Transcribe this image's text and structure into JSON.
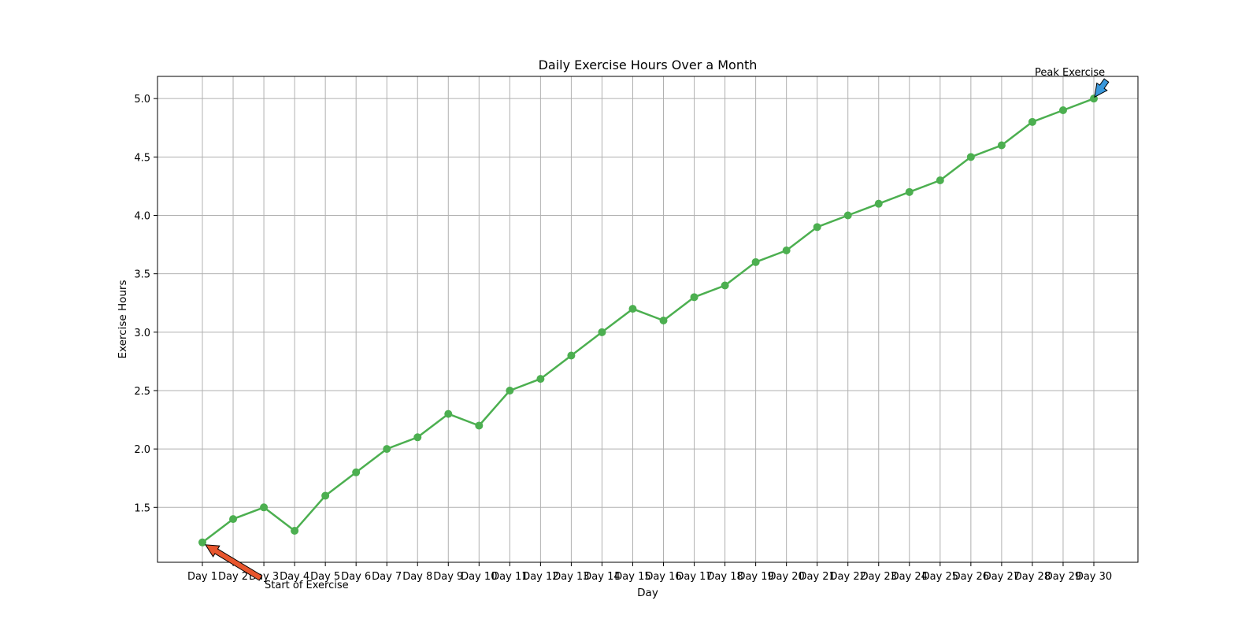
{
  "chart_data": {
    "type": "line",
    "title": "Daily Exercise Hours Over a Month",
    "xlabel": "Day",
    "ylabel": "Exercise Hours",
    "categories": [
      "Day 1",
      "Day 2",
      "Day 3",
      "Day 4",
      "Day 5",
      "Day 6",
      "Day 7",
      "Day 8",
      "Day 9",
      "Day 10",
      "Day 11",
      "Day 12",
      "Day 13",
      "Day 14",
      "Day 15",
      "Day 16",
      "Day 17",
      "Day 18",
      "Day 19",
      "Day 20",
      "Day 21",
      "Day 22",
      "Day 23",
      "Day 24",
      "Day 25",
      "Day 26",
      "Day 27",
      "Day 28",
      "Day 29",
      "Day 30"
    ],
    "values": [
      1.2,
      1.4,
      1.5,
      1.3,
      1.6,
      1.8,
      2.0,
      2.1,
      2.3,
      2.2,
      2.5,
      2.6,
      2.8,
      3.0,
      3.2,
      3.1,
      3.3,
      3.4,
      3.6,
      3.7,
      3.9,
      4.0,
      4.1,
      4.2,
      4.3,
      4.5,
      4.6,
      4.8,
      4.9,
      5.0
    ],
    "ylim": [
      1.03,
      5.19
    ],
    "yticks": [
      1.5,
      2.0,
      2.5,
      3.0,
      3.5,
      4.0,
      4.5,
      5.0
    ],
    "grid": true,
    "line_color": "#4caf50",
    "annotations": [
      {
        "text": "Start of Exercise",
        "category": "Day 1",
        "value": 1.2,
        "color": "#e8562e"
      },
      {
        "text": "Peak Exercise",
        "category": "Day 30",
        "value": 5.0,
        "color": "#3a98db"
      }
    ]
  }
}
